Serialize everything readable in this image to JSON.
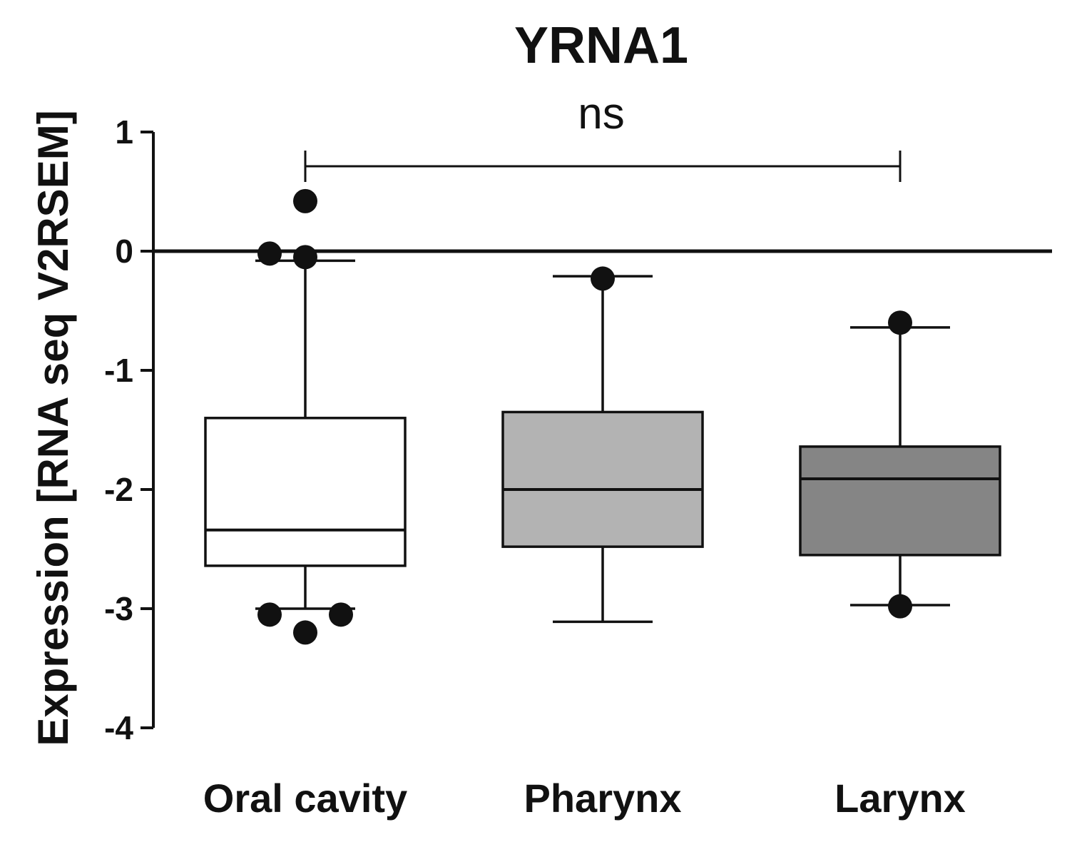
{
  "chart_data": {
    "type": "box",
    "title": "YRNA1",
    "xlabel": "",
    "ylabel": "Expression [RNA seq V2RSEM]",
    "ylim": [
      -4,
      1
    ],
    "yticks": [
      "1",
      "0",
      "-1",
      "-2",
      "-3",
      "-4"
    ],
    "ytick_values": [
      1,
      0,
      -1,
      -2,
      -3,
      -4
    ],
    "reference_line": 0,
    "grid": false,
    "categories": [
      "Oral cavity",
      "Pharynx",
      "Larynx"
    ],
    "boxes": [
      {
        "category": "Oral cavity",
        "whisker_low": -3.0,
        "q1": -2.64,
        "median": -2.34,
        "q3": -1.4,
        "whisker_high": -0.08,
        "fill": "#ffffff",
        "outliers": [
          0.42,
          -0.02,
          -0.05,
          -3.05,
          -3.05,
          -3.2
        ]
      },
      {
        "category": "Pharynx",
        "whisker_low": -3.11,
        "q1": -2.48,
        "median": -2.0,
        "q3": -1.35,
        "whisker_high": -0.21,
        "fill": "#b3b3b3",
        "outliers": [
          -0.23
        ]
      },
      {
        "category": "Larynx",
        "whisker_low": -2.97,
        "q1": -2.55,
        "median": -1.91,
        "q3": -1.64,
        "whisker_high": -0.64,
        "fill": "#858585",
        "outliers": [
          -0.6,
          -2.98
        ]
      }
    ],
    "annotations": [
      {
        "text": "ns",
        "from": "Oral cavity",
        "to": "Larynx",
        "y": 0.7
      }
    ]
  }
}
